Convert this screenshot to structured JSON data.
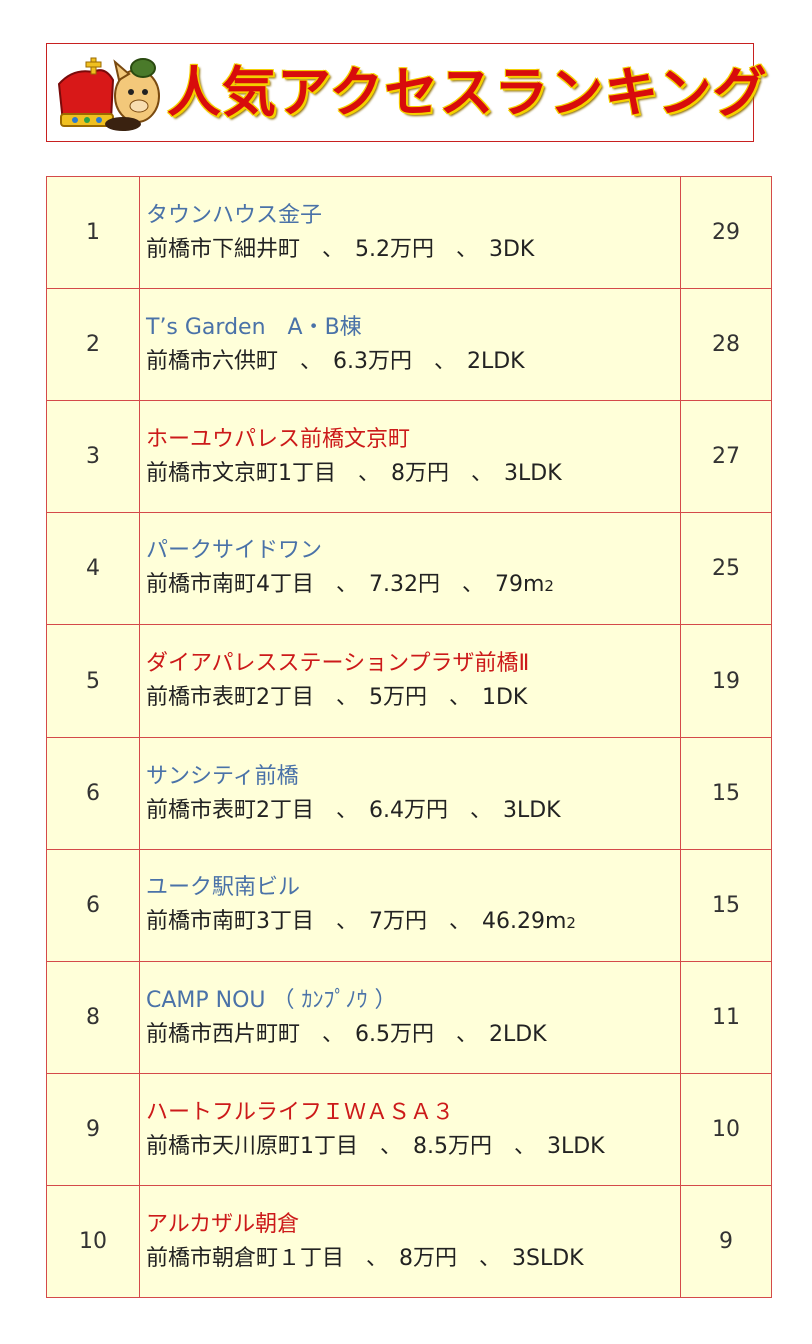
{
  "banner": {
    "title": "人気アクセスランキング"
  },
  "colors": {
    "accent": "#d80c0c",
    "cell_bg": "#ffffd9",
    "border": "#d44a4a",
    "link_blue": "#4a72a8",
    "link_red": "#cc1a1a"
  },
  "rows": [
    {
      "rank": "1",
      "name": "タウンハウス金子",
      "name_color": "blue",
      "detail": "前橋市下細井町　、　5.2万円　、　3DK",
      "count": "29"
    },
    {
      "rank": "2",
      "name": "T’s Garden　A・B棟",
      "name_color": "blue",
      "detail": "前橋市六供町　、　6.3万円　、　2LDK",
      "count": "28"
    },
    {
      "rank": "3",
      "name": "ホーユウパレス前橋文京町",
      "name_color": "red",
      "detail": "前橋市文京町1丁目　、　8万円　、　3LDK",
      "count": "27"
    },
    {
      "rank": "4",
      "name": "パークサイドワン",
      "name_color": "blue",
      "detail": "前橋市南町4丁目　、　7.32円　、　79m",
      "detail_suffix": "2",
      "count": "25"
    },
    {
      "rank": "5",
      "name": "ダイアパレスステーションプラザ前橋Ⅱ",
      "name_color": "red",
      "detail": "前橋市表町2丁目　、　5万円　、　1DK",
      "count": "19"
    },
    {
      "rank": "6",
      "name": "サンシティ前橋",
      "name_color": "blue",
      "detail": "前橋市表町2丁目　、　6.4万円　、　3LDK",
      "count": "15"
    },
    {
      "rank": "6",
      "name": "ユーク駅南ビル",
      "name_color": "blue",
      "detail": "前橋市南町3丁目　、　7万円　、　46.29m",
      "detail_suffix": "2",
      "count": "15"
    },
    {
      "rank": "8",
      "name": "CAMP NOU （ ｶﾝﾌﾟﾉｳ ）",
      "name_color": "blue",
      "detail": "前橋市西片町町　、　6.5万円　、　2LDK",
      "count": "11"
    },
    {
      "rank": "9",
      "name": "ハートフルライフＩＷＡＳＡ３",
      "name_color": "red",
      "detail": "前橋市天川原町1丁目　、　8.5万円　、　3LDK",
      "count": "10"
    },
    {
      "rank": "10",
      "name": "アルカザル朝倉",
      "name_color": "red",
      "detail": "前橋市朝倉町１丁目　、　8万円　、　3SLDK",
      "count": "9"
    }
  ]
}
